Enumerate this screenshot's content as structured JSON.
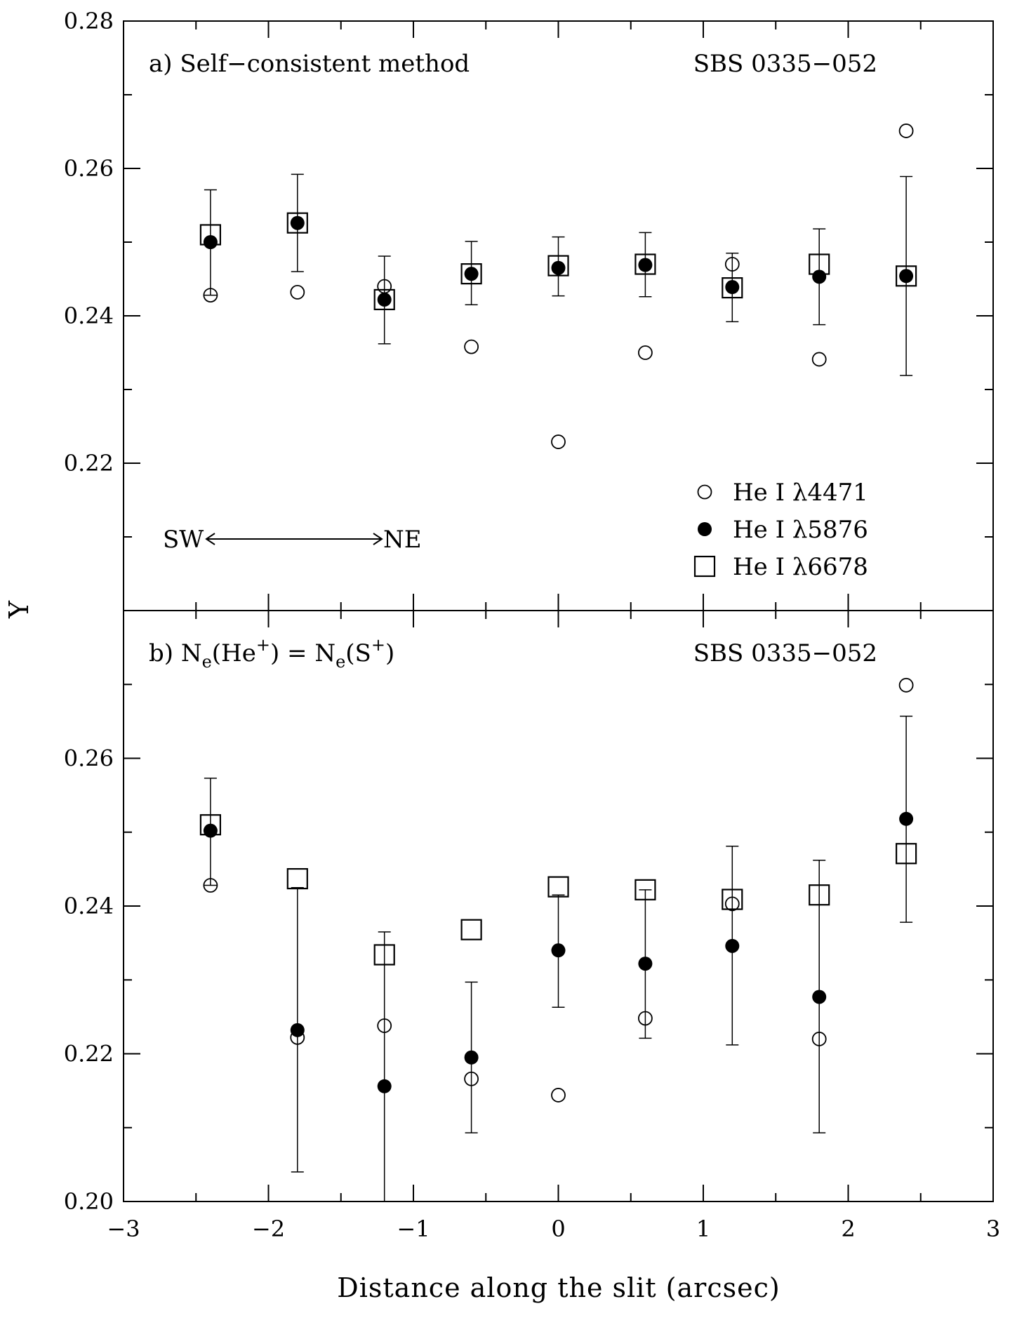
{
  "figure": {
    "ylabel": "Y",
    "xlabel": "Distance along the slit (arcsec)",
    "direction": {
      "left": "SW",
      "right": "NE"
    },
    "legend": [
      {
        "marker": "open-circle",
        "label": "He I λ4471"
      },
      {
        "marker": "filled-circle",
        "label": "He I λ5876"
      },
      {
        "marker": "open-square",
        "label": "He I λ6678"
      }
    ],
    "xticks": [
      "−3",
      "−2",
      "−1",
      "0",
      "1",
      "2",
      "3"
    ]
  },
  "chart_data": [
    {
      "type": "scatter",
      "panel": "a",
      "title": "a) Self−consistent method",
      "object": "SBS 0335−052",
      "xlim": [
        -3,
        3
      ],
      "ylim": [
        0.2,
        0.28
      ],
      "yticks": [
        "0.22",
        "0.24",
        "0.26",
        "0.28"
      ],
      "x": [
        -2.4,
        -1.8,
        -1.2,
        -0.6,
        0.0,
        0.6,
        1.2,
        1.8,
        2.4
      ],
      "series": [
        {
          "name": "He I λ4471",
          "values": [
            0.2428,
            0.2432,
            0.244,
            0.2358,
            0.2229,
            0.235,
            0.247,
            0.2341,
            0.2651
          ]
        },
        {
          "name": "He I λ5876",
          "values": [
            0.25,
            0.2526,
            0.2422,
            0.2457,
            0.2465,
            0.2469,
            0.2439,
            0.2453,
            0.2454
          ]
        },
        {
          "name": "He I λ6678",
          "values": [
            0.251,
            0.2526,
            0.2422,
            0.2457,
            0.2468,
            0.247,
            0.2438,
            0.247,
            0.2454
          ]
        }
      ],
      "error_bars": {
        "series": "He I λ5876",
        "low": [
          0.2428,
          0.246,
          0.2362,
          0.2415,
          0.2427,
          0.2426,
          0.2392,
          0.2388,
          0.2319
        ],
        "high": [
          0.2571,
          0.2592,
          0.2481,
          0.2501,
          0.2507,
          0.2513,
          0.2485,
          0.2518,
          0.2589
        ]
      },
      "grid": false,
      "legend_position": "lower-right"
    },
    {
      "type": "scatter",
      "panel": "b",
      "title_parts": [
        "b) N",
        "e",
        "(He",
        "+",
        ") = N",
        "e",
        "(S",
        "+",
        ")"
      ],
      "object": "SBS 0335−052",
      "xlim": [
        -3,
        3
      ],
      "ylim": [
        0.2,
        0.28
      ],
      "yticks": [
        "0.20",
        "0.22",
        "0.24",
        "0.26"
      ],
      "x": [
        -2.4,
        -1.8,
        -1.2,
        -0.6,
        0.0,
        0.6,
        1.2,
        1.8,
        2.4
      ],
      "series": [
        {
          "name": "He I λ4471",
          "values": [
            0.2428,
            0.2222,
            0.2238,
            0.2166,
            0.2144,
            0.2248,
            0.2403,
            0.222,
            0.2699
          ]
        },
        {
          "name": "He I λ5876",
          "values": [
            0.2502,
            0.2232,
            0.2156,
            0.2195,
            0.234,
            0.2322,
            0.2346,
            0.2277,
            0.2518
          ]
        },
        {
          "name": "He I λ6678",
          "values": [
            0.251,
            0.2437,
            0.2334,
            0.2368,
            0.2426,
            0.2422,
            0.2409,
            0.2415,
            0.2471
          ]
        }
      ],
      "error_bars": {
        "series": "He I λ5876",
        "low": [
          0.2428,
          0.204,
          0.2,
          0.2093,
          0.2263,
          0.2221,
          0.2212,
          0.2093,
          0.2378
        ],
        "high": [
          0.2573,
          0.2425,
          0.2365,
          0.2297,
          0.2415,
          0.2422,
          0.2481,
          0.2462,
          0.2657
        ]
      },
      "grid": false
    }
  ]
}
